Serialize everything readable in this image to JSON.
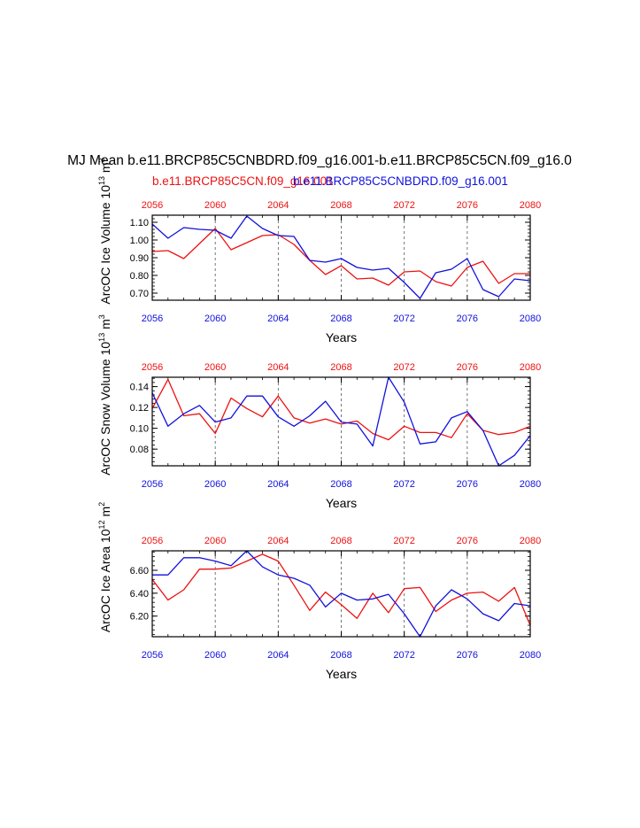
{
  "figure": {
    "title": "MJ Mean b.e11.BRCP85C5CNBDRD.f09_g16.001-b.e11.BRCP85C5CN.f09_g16.0",
    "legend_red": "b.e11.BRCP85C5CN.f09_g16.001",
    "legend_blue": "b.e11.BRCP85C5CNBDRD.f09_g16.001"
  },
  "colors": {
    "red": "#ee1111",
    "blue": "#1111dd",
    "axis": "#000000",
    "grid": "#555555"
  },
  "chart_data": [
    {
      "type": "line",
      "ylabel": "ArcOC Ice Volume",
      "yunit_base": "10",
      "yunit_exp": "13",
      "yunit_tail": "m",
      "yunit_tail_exp": "3",
      "xlabel": "Years",
      "xlim": [
        2056,
        2080
      ],
      "ylim": [
        0.66,
        1.14
      ],
      "yticks": [
        0.7,
        0.8,
        0.9,
        1.0,
        1.1
      ],
      "ytick_labels": [
        "0.70",
        "0.80",
        "0.90",
        "1.00",
        "1.10"
      ],
      "xticks": [
        2056,
        2060,
        2064,
        2068,
        2072,
        2076,
        2080
      ],
      "xtick_labels": [
        "2056",
        "2060",
        "2064",
        "2068",
        "2072",
        "2076",
        "2080"
      ],
      "top_tick_labels": [
        "2056",
        "2060",
        "2064",
        "2068",
        "2072",
        "2076",
        "2080"
      ],
      "x": [
        2056,
        2057,
        2058,
        2059,
        2060,
        2061,
        2062,
        2063,
        2064,
        2065,
        2066,
        2067,
        2068,
        2069,
        2070,
        2071,
        2072,
        2073,
        2074,
        2075,
        2076,
        2077,
        2078,
        2079,
        2080
      ],
      "series": [
        {
          "color": "red",
          "values": [
            0.935,
            0.94,
            0.895,
            0.98,
            1.065,
            0.945,
            0.985,
            1.025,
            1.03,
            0.975,
            0.885,
            0.805,
            0.855,
            0.78,
            0.785,
            0.745,
            0.82,
            0.825,
            0.765,
            0.74,
            0.845,
            0.88,
            0.755,
            0.81,
            0.81
          ]
        },
        {
          "color": "blue",
          "values": [
            1.09,
            1.01,
            1.07,
            1.06,
            1.055,
            1.01,
            1.135,
            1.065,
            1.025,
            1.02,
            0.885,
            0.875,
            0.895,
            0.845,
            0.83,
            0.84,
            0.76,
            0.67,
            0.815,
            0.835,
            0.895,
            0.72,
            0.68,
            0.78,
            0.77
          ]
        }
      ]
    },
    {
      "type": "line",
      "ylabel": "ArcOC Snow Volume",
      "yunit_base": "10",
      "yunit_exp": "13",
      "yunit_tail": "m",
      "yunit_tail_exp": "3",
      "xlabel": "Years",
      "xlim": [
        2056,
        2080
      ],
      "ylim": [
        0.064,
        0.149
      ],
      "yticks": [
        0.08,
        0.1,
        0.12,
        0.14
      ],
      "ytick_labels": [
        "0.08",
        "0.10",
        "0.12",
        "0.14"
      ],
      "xticks": [
        2056,
        2060,
        2064,
        2068,
        2072,
        2076,
        2080
      ],
      "xtick_labels": [
        "2056",
        "2060",
        "2064",
        "2068",
        "2072",
        "2076",
        "2080"
      ],
      "top_tick_labels": [
        "2056",
        "2060",
        "2064",
        "2068",
        "2072",
        "2076",
        "2080"
      ],
      "x": [
        2056,
        2057,
        2058,
        2059,
        2060,
        2061,
        2062,
        2063,
        2064,
        2065,
        2066,
        2067,
        2068,
        2069,
        2070,
        2071,
        2072,
        2073,
        2074,
        2075,
        2076,
        2077,
        2078,
        2079,
        2080
      ],
      "series": [
        {
          "color": "red",
          "values": [
            0.119,
            0.147,
            0.112,
            0.114,
            0.095,
            0.129,
            0.119,
            0.111,
            0.131,
            0.11,
            0.105,
            0.109,
            0.104,
            0.107,
            0.095,
            0.089,
            0.102,
            0.096,
            0.096,
            0.091,
            0.114,
            0.098,
            0.094,
            0.096,
            0.102
          ]
        },
        {
          "color": "blue",
          "values": [
            0.134,
            0.102,
            0.114,
            0.122,
            0.106,
            0.11,
            0.131,
            0.131,
            0.111,
            0.102,
            0.112,
            0.126,
            0.106,
            0.104,
            0.083,
            0.149,
            0.125,
            0.085,
            0.087,
            0.11,
            0.116,
            0.098,
            0.064,
            0.074,
            0.093
          ]
        }
      ]
    },
    {
      "type": "line",
      "ylabel": "ArcOC Ice Area",
      "yunit_base": "10",
      "yunit_exp": "12",
      "yunit_tail": "m",
      "yunit_tail_exp": "2",
      "xlabel": "Years",
      "xlim": [
        2056,
        2080
      ],
      "ylim": [
        6.02,
        6.77
      ],
      "yticks": [
        6.2,
        6.4,
        6.6
      ],
      "ytick_labels": [
        "6.20",
        "6.40",
        "6.60"
      ],
      "xticks": [
        2056,
        2060,
        2064,
        2068,
        2072,
        2076,
        2080
      ],
      "xtick_labels": [
        "2056",
        "2060",
        "2064",
        "2068",
        "2072",
        "2076",
        "2080"
      ],
      "top_tick_labels": [
        "2056",
        "2060",
        "2064",
        "2068",
        "2072",
        "2076",
        "2080"
      ],
      "x": [
        2056,
        2057,
        2058,
        2059,
        2060,
        2061,
        2062,
        2063,
        2064,
        2065,
        2066,
        2067,
        2068,
        2069,
        2070,
        2071,
        2072,
        2073,
        2074,
        2075,
        2076,
        2077,
        2078,
        2079,
        2080
      ],
      "series": [
        {
          "color": "red",
          "values": [
            6.52,
            6.34,
            6.43,
            6.61,
            6.61,
            6.62,
            6.68,
            6.74,
            6.68,
            6.47,
            6.25,
            6.41,
            6.3,
            6.18,
            6.4,
            6.23,
            6.44,
            6.45,
            6.24,
            6.34,
            6.4,
            6.41,
            6.33,
            6.45,
            6.12
          ]
        },
        {
          "color": "blue",
          "values": [
            6.56,
            6.56,
            6.71,
            6.71,
            6.68,
            6.64,
            6.77,
            6.63,
            6.56,
            6.53,
            6.47,
            6.28,
            6.4,
            6.34,
            6.35,
            6.39,
            6.22,
            6.02,
            6.29,
            6.43,
            6.35,
            6.22,
            6.16,
            6.31,
            6.29
          ]
        }
      ]
    }
  ]
}
